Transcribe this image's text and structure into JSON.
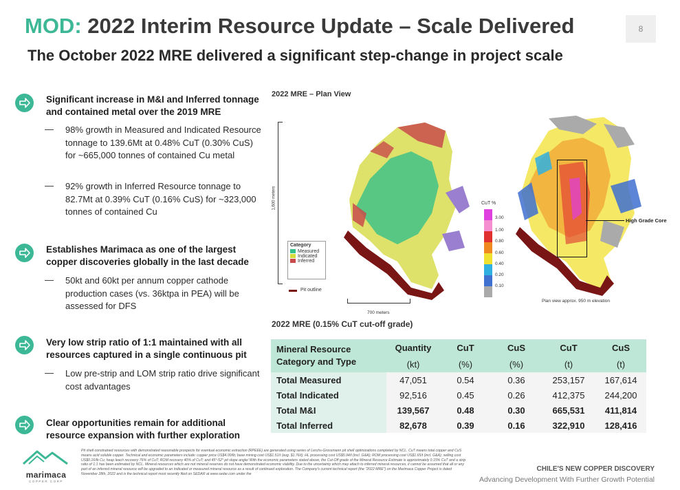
{
  "header": {
    "brand_prefix": "MOD:",
    "title": " 2022 Interim Resource Update – Scale Delivered",
    "page_number": "8",
    "subtitle": "The October 2022 MRE delivered a significant step-change in project scale"
  },
  "bullets": [
    {
      "heading": "Significant increase in M&I and Inferred tonnage and contained metal over the 2019 MRE",
      "subs": [
        "98% growth in Measured and Indicated Resource tonnage to 139.6Mt at 0.48% CuT (0.30% CuS) for ~665,000 tonnes of contained Cu metal",
        "92% growth in Inferred Resource tonnage to 82.7Mt at 0.39% CuT (0.16% CuS) for ~323,000 tonnes of contained Cu"
      ]
    },
    {
      "heading": "Establishes Marimaca as one of the largest copper discoveries globally in the last decade",
      "subs": [
        "50kt and 60kt per annum copper cathode production cases (vs. 36ktpa in PEA) will be assessed for DFS"
      ]
    },
    {
      "heading": "Very low strip ratio of 1:1 maintained with all resources captured in a single continuous pit",
      "subs": [
        "Low pre-strip and LOM strip ratio drive significant cost advantages"
      ]
    },
    {
      "heading": "Clear opportunities remain for additional resource expansion with further exploration",
      "subs": []
    }
  ],
  "map": {
    "title": "2022 MRE – Plan View",
    "scale_v": "1,600 meters",
    "scale_h": "700 meters",
    "category_title": "Category",
    "categories": [
      {
        "label": "Measured",
        "color": "#35c08a"
      },
      {
        "label": "Indicated",
        "color": "#d6de3c"
      },
      {
        "label": "Inferred",
        "color": "#c94b4b"
      }
    ],
    "pit_outline": "Pit outline",
    "cut_title": "CuT %",
    "cut_scale": [
      {
        "label": "3.00",
        "color": "#e040e0"
      },
      {
        "label": "1.00",
        "color": "#f58fd0"
      },
      {
        "label": "0.80",
        "color": "#e03030"
      },
      {
        "label": "0.60",
        "color": "#f08a20"
      },
      {
        "label": "0.40",
        "color": "#f0e030"
      },
      {
        "label": "0.20",
        "color": "#30b0e0"
      },
      {
        "label": "0.10",
        "color": "#4070d0"
      },
      {
        "label": "",
        "color": "#aaaaaa"
      }
    ],
    "high_grade": "High Grade Core",
    "plan_note": "Plan view approx. 950 m elevation"
  },
  "table": {
    "title": "2022 MRE (0.15% CuT cut-off grade)",
    "category_header": "Mineral Resource Category and Type",
    "columns": [
      {
        "name": "Quantity",
        "unit": "(kt)"
      },
      {
        "name": "CuT",
        "unit": "(%)"
      },
      {
        "name": "CuS",
        "unit": "(%)"
      },
      {
        "name": "CuT",
        "unit": "(t)"
      },
      {
        "name": "CuS",
        "unit": "(t)"
      }
    ],
    "rows": [
      {
        "label": "Total Measured",
        "values": [
          "47,051",
          "0.54",
          "0.36",
          "253,157",
          "167,614"
        ]
      },
      {
        "label": "Total Indicated",
        "values": [
          "92,516",
          "0.45",
          "0.26",
          "412,375",
          "244,200"
        ]
      },
      {
        "label": "Total M&I",
        "values": [
          "139,567",
          "0.48",
          "0.30",
          "665,531",
          "411,814"
        ]
      },
      {
        "label": "Total Inferred",
        "values": [
          "82,678",
          "0.39",
          "0.16",
          "322,910",
          "128,416"
        ]
      }
    ]
  },
  "footer": {
    "logo_text": "marimaca",
    "logo_sub": "COPPER CORP",
    "footnote": "Pit shell constrained resources with demonstrated reasonable prospects for eventual economic extraction (RPEEE) are generated using series of Lerchs-Grossmann pit shell optimizations completed by NCL. CuT means total copper and CuS means acid soluble copper. Technical and economic parameters include: copper price US$4.00/lb; base mining cost US$1.51/t (avg. $1.76/t); HL processing cost US$5.94/t (incl. G&A); ROM processing cost US$1.65/t (incl. G&A); selling cost US$0.16/lb Cu; heap leach recovery 76% of CuT; ROM recovery 40% of CuT; and 45°-52° pit slope angle/ With the economic parameters stated above, the Cut-Off grade of the Mineral Resource Estimate is approximately 0.15% CuT and a strip ratio of 1:1 has been estimated by NCL. Mineral resources which are not mineral reserves do not have demonstrated economic viability. Due to the uncertainty which may attach to inferred mineral resources, it cannot be assumed that all or any part of an inferred mineral resource will be upgraded to an indicated or measured mineral resource as a result of continued exploration. The Company's current technical report (the \"2022 MRE\") on the Marimaca Copper Project is dated November 28th, 2022 and is the technical report most recently filed on SEDAR at www.sedar.com under the",
    "tagline_1": "CHILE'S NEW COPPER DISCOVERY",
    "tagline_2": "Advancing Development With Further Growth Potential"
  }
}
